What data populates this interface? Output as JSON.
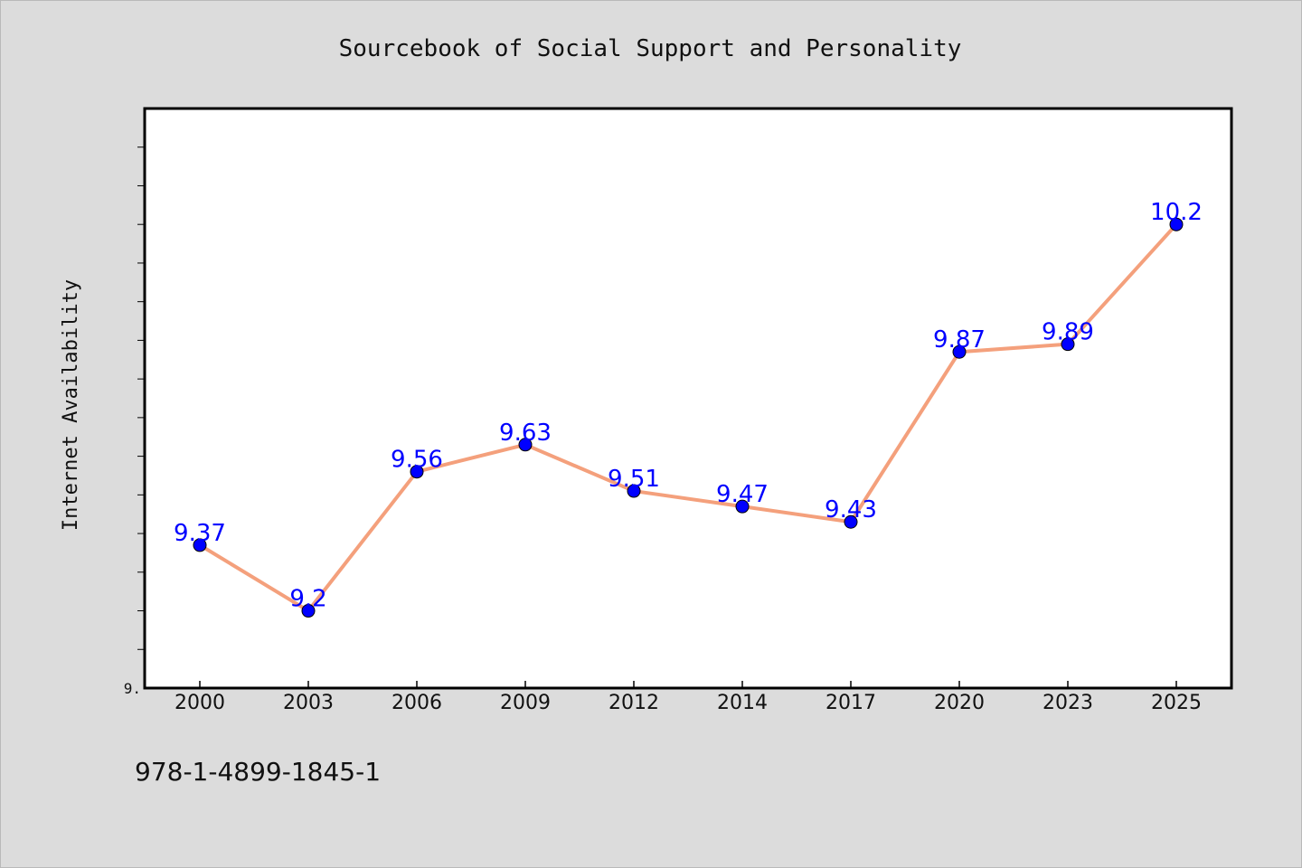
{
  "chart_data": {
    "type": "line",
    "title": "Sourcebook of Social Support and Personality",
    "xlabel": "",
    "ylabel": "Internet Availability",
    "categories": [
      "2000",
      "2003",
      "2006",
      "2009",
      "2012",
      "2014",
      "2017",
      "2020",
      "2023",
      "2025"
    ],
    "series": [
      {
        "values": [
          9.37,
          9.2,
          9.56,
          9.63,
          9.51,
          9.47,
          9.43,
          9.87,
          9.89,
          10.2
        ],
        "labels": [
          "9.37",
          "9.2",
          "9.56",
          "9.63",
          "9.51",
          "9.47",
          "9.43",
          "9.87",
          "9.89",
          "10.2"
        ]
      }
    ],
    "ylim": [
      9.0,
      10.5
    ],
    "y_tick_label": "9.",
    "grid": false,
    "line_color": "#f4a07c",
    "marker_color": "#0000ff"
  },
  "footer": {
    "isbn": "978-1-4899-1845-1"
  }
}
